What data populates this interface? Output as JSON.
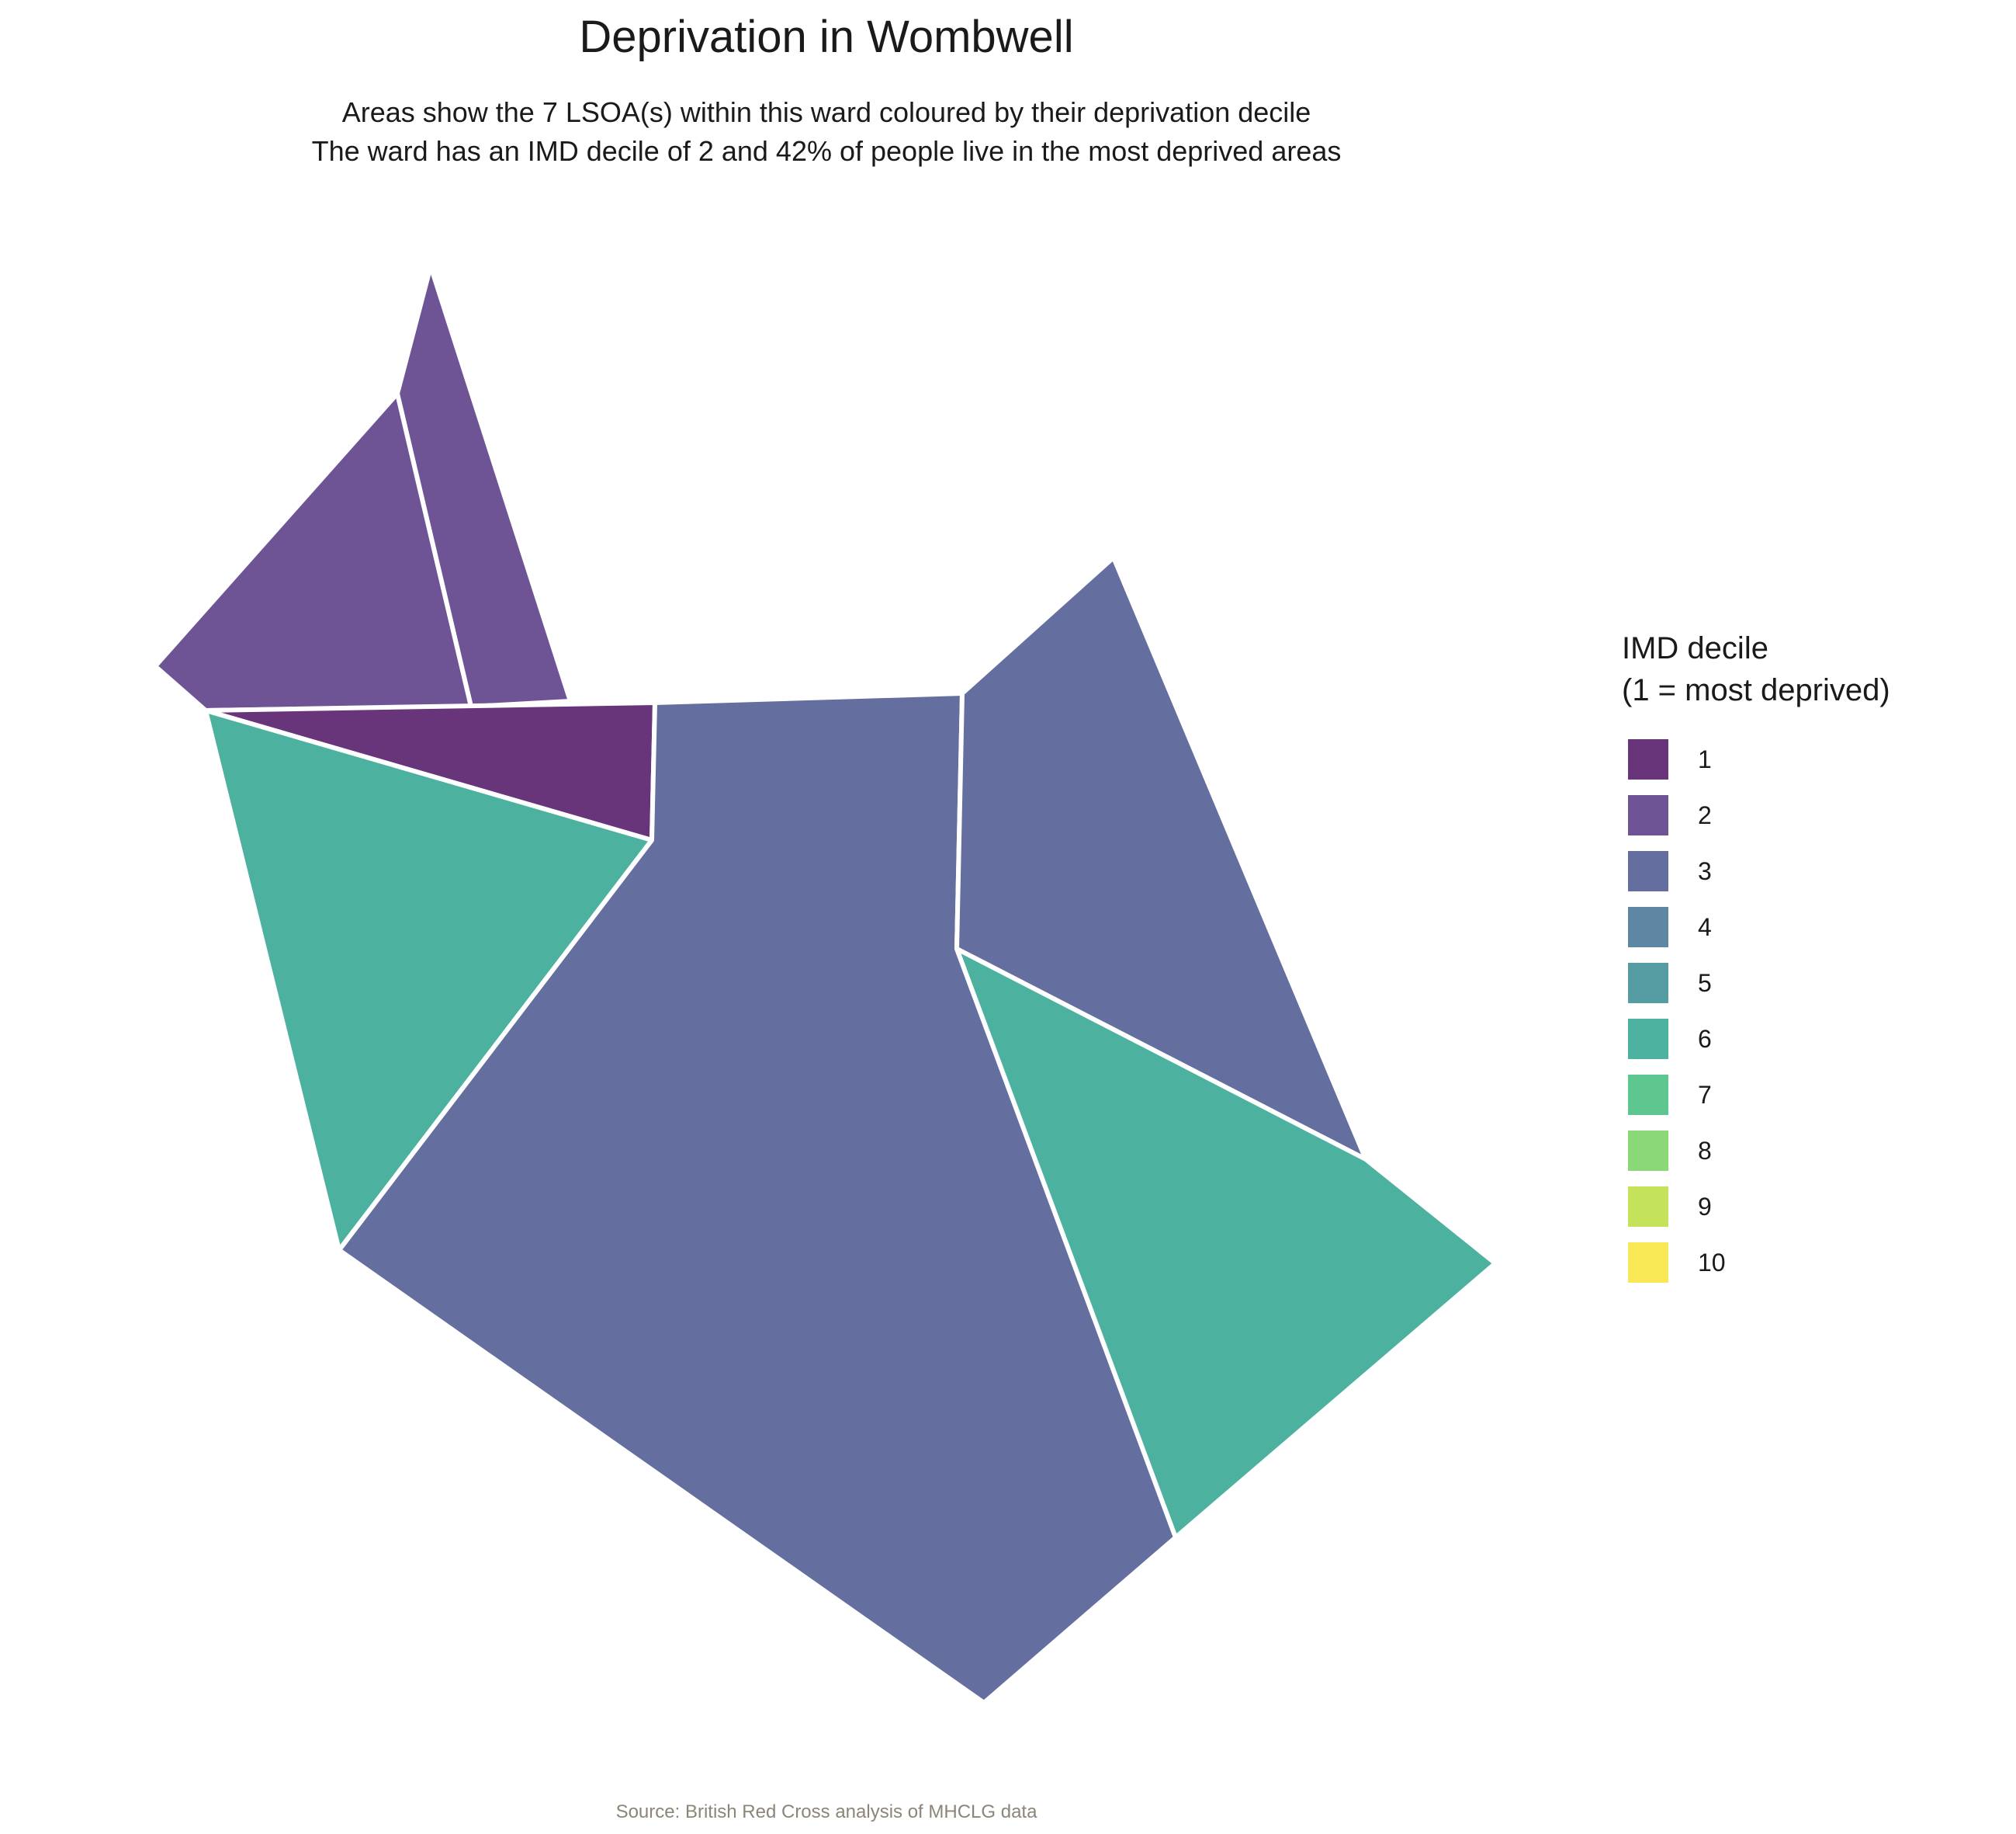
{
  "title": "Deprivation in Wombwell",
  "subtitle_lines": [
    "Areas show the 7 LSOA(s) within this ward coloured by their deprivation decile",
    "The ward has an IMD decile of 2 and 42% of people live in the most deprived areas"
  ],
  "caption": "Source: British Red Cross analysis of MHCLG data",
  "legend": {
    "title_lines": [
      "IMD decile",
      "(1 = most deprived)"
    ],
    "items": [
      {
        "label": "1",
        "color": "#68347A"
      },
      {
        "label": "2",
        "color": "#6E5495"
      },
      {
        "label": "3",
        "color": "#646F9F"
      },
      {
        "label": "4",
        "color": "#5D87A2"
      },
      {
        "label": "5",
        "color": "#559CA3"
      },
      {
        "label": "6",
        "color": "#4DB1A0"
      },
      {
        "label": "7",
        "color": "#5EC68F"
      },
      {
        "label": "8",
        "color": "#8BD878"
      },
      {
        "label": "9",
        "color": "#C5E35A"
      },
      {
        "label": "10",
        "color": "#F9E855"
      }
    ]
  },
  "areas": [
    {
      "name": "lsoa-north-spike",
      "decile": 2
    },
    {
      "name": "lsoa-northwest",
      "decile": 2
    },
    {
      "name": "lsoa-north-strip",
      "decile": 1
    },
    {
      "name": "lsoa-west",
      "decile": 6
    },
    {
      "name": "lsoa-central",
      "decile": 3
    },
    {
      "name": "lsoa-northeast",
      "decile": 3
    },
    {
      "name": "lsoa-southeast",
      "decile": 6
    }
  ]
}
